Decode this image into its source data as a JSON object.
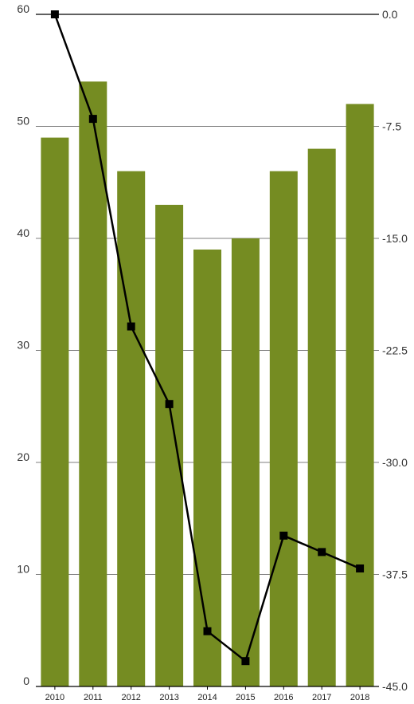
{
  "chart_data": {
    "type": "bar",
    "title": "",
    "xlabel": "",
    "ylabel": "",
    "categories": [
      "2010",
      "2011",
      "2012",
      "2013",
      "2014",
      "2015",
      "2016",
      "2017",
      "2018"
    ],
    "series": [
      {
        "type": "bar",
        "axis": "left",
        "color": "#758c22",
        "values": [
          49,
          54,
          46,
          43,
          39,
          40,
          46,
          48,
          52
        ]
      },
      {
        "type": "line",
        "axis": "right",
        "color": "#000000",
        "marker": "square",
        "values": [
          0.0,
          -7.0,
          -20.9,
          -26.1,
          -41.3,
          -43.3,
          -34.9,
          -36.0,
          -37.1
        ]
      }
    ],
    "left_axis": {
      "ylim": [
        0,
        60
      ],
      "ticks": [
        "0",
        "10",
        "20",
        "30",
        "40",
        "50",
        "60"
      ]
    },
    "right_axis": {
      "ylim": [
        -45.0,
        0.0
      ],
      "ticks": [
        "-45.0",
        "-37.5",
        "-30.0",
        "-22.5",
        "-15.0",
        "-7.5",
        "0.0"
      ]
    },
    "grid": true,
    "legend": "none"
  }
}
